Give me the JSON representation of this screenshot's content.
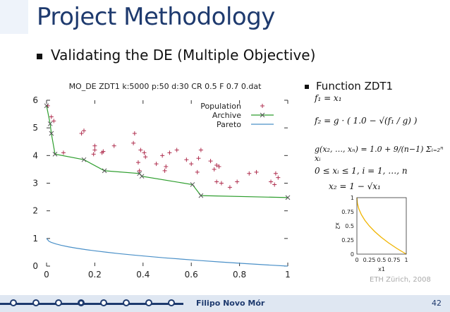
{
  "slide": {
    "title": "Project Methodology",
    "bullet_main": "Validating the DE (Multiple Objective)",
    "bullet_function": "Function ZDT1",
    "credit": "ETH Zürich, 2008",
    "author": "Filipo Novo Mór",
    "page_number": "42"
  },
  "equations": {
    "f1": "f₁ = x₁",
    "f2": "f₂ = g · ( 1.0 − √(f₁ / g) )",
    "g": "g(x₂, …, xₙ) = 1.0 + 9/(n−1) Σᵢ₌₂ⁿ xᵢ",
    "domain": "0 ≤ xᵢ ≤ 1, i = 1, …, n",
    "x2": "x₂ = 1 − √x₁"
  },
  "chart_data": [
    {
      "type": "scatter",
      "title": "MO_DE ZDT1 k:5000 p:50 d:30 CR 0.5 F 0.7 0.dat",
      "xlabel": "",
      "ylabel": "",
      "xlim": [
        0,
        1
      ],
      "ylim": [
        0,
        6
      ],
      "xticks": [
        0,
        0.2,
        0.4,
        0.6,
        0.8,
        1
      ],
      "yticks": [
        0,
        1,
        2,
        3,
        4,
        5,
        6
      ],
      "legend_position": "top-right",
      "series": [
        {
          "name": "Population",
          "color": "#b03050",
          "marker": "plus",
          "points": [
            [
              0.005,
              5.8
            ],
            [
              0.02,
              5.4
            ],
            [
              0.03,
              5.25
            ],
            [
              0.07,
              4.1
            ],
            [
              0.145,
              4.8
            ],
            [
              0.155,
              4.9
            ],
            [
              0.2,
              4.2
            ],
            [
              0.2,
              4.35
            ],
            [
              0.195,
              4.05
            ],
            [
              0.23,
              4.1
            ],
            [
              0.235,
              4.15
            ],
            [
              0.28,
              4.35
            ],
            [
              0.36,
              4.45
            ],
            [
              0.365,
              4.8
            ],
            [
              0.385,
              3.45
            ],
            [
              0.38,
              3.75
            ],
            [
              0.39,
              4.2
            ],
            [
              0.405,
              4.1
            ],
            [
              0.41,
              3.95
            ],
            [
              0.455,
              3.7
            ],
            [
              0.48,
              4.0
            ],
            [
              0.49,
              3.45
            ],
            [
              0.495,
              3.6
            ],
            [
              0.51,
              4.1
            ],
            [
              0.54,
              4.2
            ],
            [
              0.58,
              3.85
            ],
            [
              0.6,
              3.7
            ],
            [
              0.625,
              3.4
            ],
            [
              0.63,
              3.9
            ],
            [
              0.64,
              4.2
            ],
            [
              0.68,
              3.8
            ],
            [
              0.695,
              3.5
            ],
            [
              0.705,
              3.65
            ],
            [
              0.715,
              3.6
            ],
            [
              0.705,
              3.05
            ],
            [
              0.725,
              3.0
            ],
            [
              0.76,
              2.85
            ],
            [
              0.79,
              3.05
            ],
            [
              0.84,
              3.35
            ],
            [
              0.87,
              3.4
            ],
            [
              0.93,
              3.05
            ],
            [
              0.945,
              2.95
            ],
            [
              0.95,
              3.35
            ],
            [
              0.96,
              3.2
            ]
          ]
        },
        {
          "name": "Archive",
          "color": "#2e9e2e",
          "marker": "x",
          "points": [
            [
              0.0,
              5.8
            ],
            [
              0.015,
              5.15
            ],
            [
              0.02,
              4.8
            ],
            [
              0.035,
              4.05
            ],
            [
              0.155,
              3.85
            ],
            [
              0.24,
              3.45
            ],
            [
              0.385,
              3.35
            ],
            [
              0.395,
              3.25
            ],
            [
              0.605,
              2.95
            ],
            [
              0.64,
              2.55
            ],
            [
              1.0,
              2.48
            ]
          ]
        },
        {
          "name": "Pareto",
          "color": "#4a90c8",
          "marker": "line",
          "points": [
            [
              0,
              1
            ],
            [
              0.01,
              0.9
            ],
            [
              0.02,
              0.859
            ],
            [
              0.04,
              0.8
            ],
            [
              0.06,
              0.755
            ],
            [
              0.09,
              0.7
            ],
            [
              0.12,
              0.654
            ],
            [
              0.16,
              0.6
            ],
            [
              0.2,
              0.553
            ],
            [
              0.25,
              0.5
            ],
            [
              0.3,
              0.452
            ],
            [
              0.36,
              0.4
            ],
            [
              0.42,
              0.352
            ],
            [
              0.49,
              0.3
            ],
            [
              0.56,
              0.252
            ],
            [
              0.64,
              0.2
            ],
            [
              0.72,
              0.151
            ],
            [
              0.81,
              0.1
            ],
            [
              0.9,
              0.051
            ],
            [
              1,
              0
            ]
          ]
        }
      ]
    },
    {
      "type": "line",
      "title": "",
      "xlabel": "x1",
      "ylabel": "x2",
      "xlim": [
        0,
        1
      ],
      "ylim": [
        0,
        1
      ],
      "xticks": [
        "0",
        "0.25",
        "0.5",
        "0.75",
        "1"
      ],
      "yticks": [
        "0",
        "0.25",
        "0.5",
        "0.75",
        "1"
      ],
      "series": [
        {
          "color": "#f0b400",
          "points": [
            [
              0,
              1
            ],
            [
              0.01,
              0.9
            ],
            [
              0.04,
              0.8
            ],
            [
              0.09,
              0.7
            ],
            [
              0.16,
              0.6
            ],
            [
              0.25,
              0.5
            ],
            [
              0.36,
              0.4
            ],
            [
              0.49,
              0.3
            ],
            [
              0.64,
              0.2
            ],
            [
              0.81,
              0.1
            ],
            [
              1,
              0
            ]
          ]
        }
      ]
    }
  ]
}
